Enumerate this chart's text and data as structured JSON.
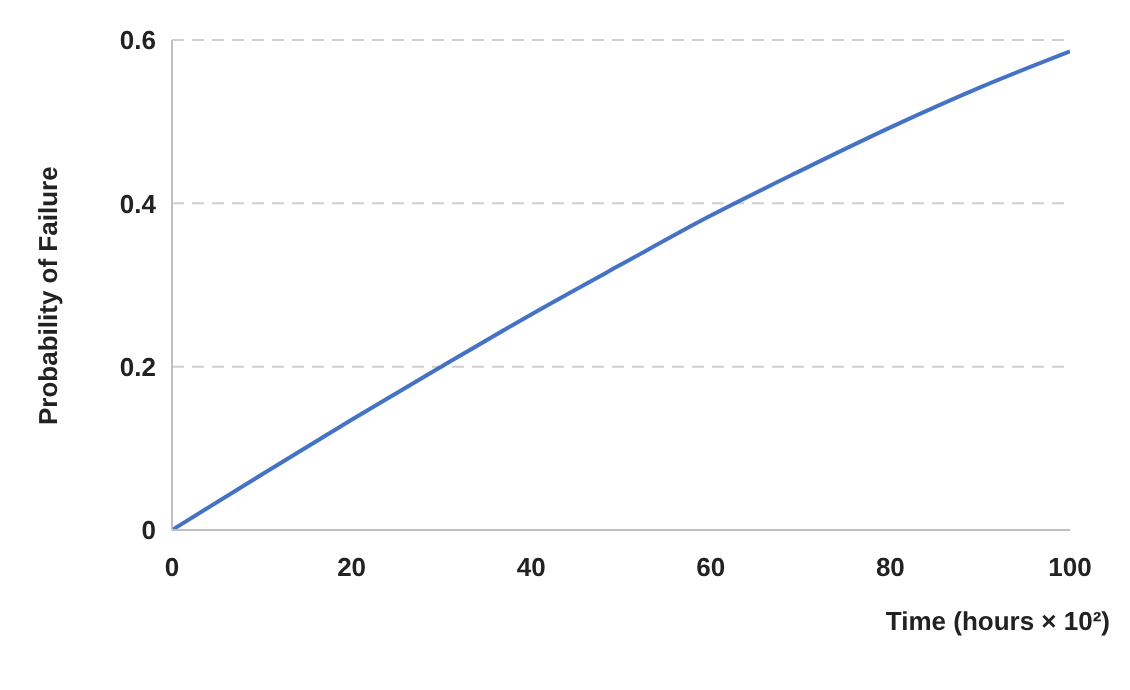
{
  "chart_data": {
    "type": "line",
    "xlabel": "Time (hours × 10²)",
    "ylabel": "Probability of Failure",
    "x": [
      0,
      10,
      20,
      30,
      40,
      50,
      60,
      70,
      80,
      90,
      100
    ],
    "series": [
      {
        "color": "#4472c4",
        "values": [
          0,
          0.068,
          0.135,
          0.2,
          0.264,
          0.325,
          0.385,
          0.44,
          0.493,
          0.542,
          0.586
        ]
      }
    ],
    "xlim": [
      0,
      100
    ],
    "xticks": [
      0,
      20,
      40,
      60,
      80,
      100
    ],
    "ylim": [
      0,
      0.6
    ],
    "yticks": [
      0,
      0.2,
      0.4,
      0.6
    ],
    "grid": "y",
    "legend": false,
    "marker": "none",
    "line_style": "solid"
  }
}
